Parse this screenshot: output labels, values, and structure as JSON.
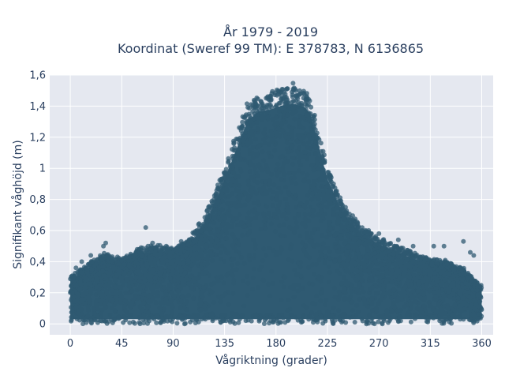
{
  "chart_data": {
    "type": "scatter",
    "title_line1": "År 1979 - 2019",
    "title_line2": "Koordinat (Sweref 99 TM): E 378783, N 6136865",
    "xlabel": "Vågriktning (grader)",
    "ylabel": "Signifikant våghöjd (m)",
    "xlim": [
      -18,
      370
    ],
    "ylim": [
      -0.07,
      1.6
    ],
    "x_ticks": [
      0,
      45,
      90,
      135,
      180,
      225,
      270,
      315,
      360
    ],
    "y_ticks": [
      0,
      0.2,
      0.4,
      0.6,
      0.8,
      1,
      1.2,
      1.4,
      1.6
    ],
    "y_tick_labels": [
      "0",
      "0,2",
      "0,4",
      "0,6",
      "0,8",
      "1",
      "1,2",
      "1,4",
      "1,6"
    ],
    "grid": true,
    "marker_color": "#2f5a72",
    "plot_bg": "#e5e8f0",
    "envelope_upper": [
      [
        0,
        0.3
      ],
      [
        15,
        0.38
      ],
      [
        30,
        0.45
      ],
      [
        45,
        0.42
      ],
      [
        60,
        0.48
      ],
      [
        75,
        0.5
      ],
      [
        90,
        0.48
      ],
      [
        105,
        0.55
      ],
      [
        120,
        0.72
      ],
      [
        130,
        0.9
      ],
      [
        135,
        1.0
      ],
      [
        145,
        1.2
      ],
      [
        155,
        1.4
      ],
      [
        165,
        1.47
      ],
      [
        175,
        1.48
      ],
      [
        185,
        1.51
      ],
      [
        195,
        1.52
      ],
      [
        205,
        1.5
      ],
      [
        210,
        1.45
      ],
      [
        215,
        1.3
      ],
      [
        220,
        1.15
      ],
      [
        225,
        1.0
      ],
      [
        235,
        0.82
      ],
      [
        245,
        0.7
      ],
      [
        255,
        0.62
      ],
      [
        270,
        0.55
      ],
      [
        285,
        0.5
      ],
      [
        300,
        0.45
      ],
      [
        315,
        0.42
      ],
      [
        330,
        0.4
      ],
      [
        345,
        0.35
      ],
      [
        360,
        0.24
      ]
    ],
    "outliers": [
      [
        31,
        0.52
      ],
      [
        29,
        0.5
      ],
      [
        66,
        0.62
      ],
      [
        68,
        0.5
      ],
      [
        72,
        0.52
      ],
      [
        97,
        0.53
      ],
      [
        108,
        0.58
      ],
      [
        263,
        0.58
      ],
      [
        270,
        0.58
      ],
      [
        287,
        0.54
      ],
      [
        300,
        0.5
      ],
      [
        318,
        0.5
      ],
      [
        327,
        0.5
      ],
      [
        344,
        0.53
      ],
      [
        350,
        0.46
      ],
      [
        353,
        0.44
      ],
      [
        18,
        0.44
      ],
      [
        10,
        0.4
      ],
      [
        57,
        0.45
      ],
      [
        84,
        0.5
      ],
      [
        240,
        0.62
      ],
      [
        253,
        0.6
      ],
      [
        300,
        0.42
      ],
      [
        5,
        0.36
      ]
    ]
  }
}
